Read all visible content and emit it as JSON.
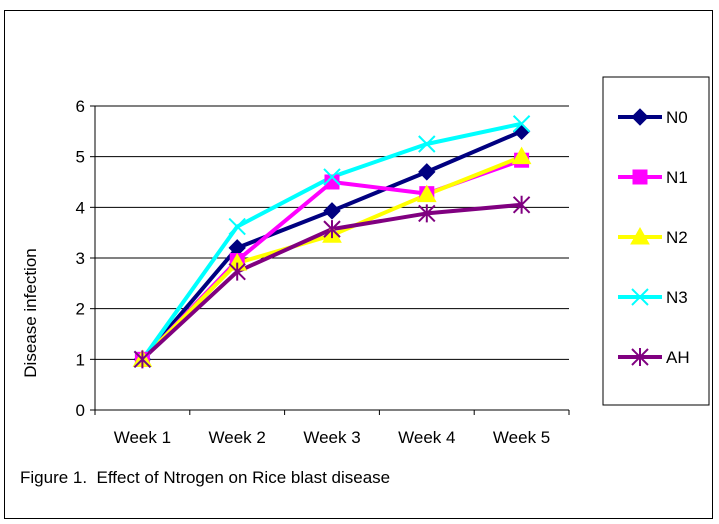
{
  "caption": "Figure 1.  Effect of Ntrogen on Rice blast disease",
  "chart_data": {
    "type": "line",
    "title": "",
    "xlabel": "",
    "ylabel": "Disease infection",
    "categories": [
      "Week 1",
      "Week 2",
      "Week 3",
      "Week 4",
      "Week 5"
    ],
    "ylim": [
      0,
      6
    ],
    "yticks": [
      "0",
      "1",
      "2",
      "3",
      "4",
      "5",
      "6"
    ],
    "grid": "horizontal",
    "legend_position": "right",
    "series": [
      {
        "name": "N0",
        "color": "#000080",
        "marker": "diamond",
        "values": [
          1.0,
          3.2,
          3.93,
          4.7,
          5.5
        ]
      },
      {
        "name": "N1",
        "color": "#ff00ff",
        "marker": "square",
        "values": [
          1.0,
          2.95,
          4.5,
          4.27,
          4.93
        ]
      },
      {
        "name": "N2",
        "color": "#ffff00",
        "marker": "triangle",
        "values": [
          1.0,
          2.9,
          3.45,
          4.25,
          5.0
        ]
      },
      {
        "name": "N3",
        "color": "#00ffff",
        "marker": "x",
        "values": [
          1.0,
          3.62,
          4.6,
          5.25,
          5.65
        ]
      },
      {
        "name": "AH",
        "color": "#800080",
        "marker": "star",
        "values": [
          1.0,
          2.73,
          3.57,
          3.88,
          4.05
        ]
      }
    ]
  }
}
